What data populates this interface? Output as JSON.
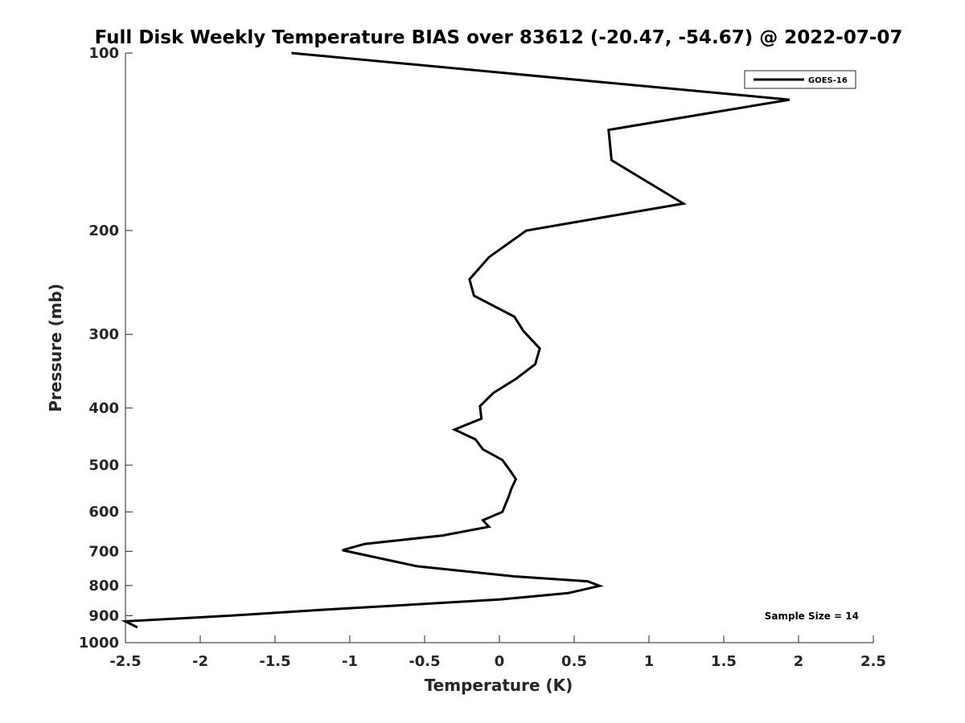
{
  "chart_data": {
    "type": "line",
    "title": "Full Disk Weekly Temperature BIAS over 83612 (-20.47, -54.67) @ 2022-07-07",
    "xlabel": "Temperature (K)",
    "ylabel": "Pressure (mb)",
    "xlim": [
      -2.5,
      2.5
    ],
    "ylim": [
      100,
      1000
    ],
    "y_scale": "log",
    "y_reversed": true,
    "x_ticks": [
      -2.5,
      -2,
      -1.5,
      -1,
      -0.5,
      0,
      0.5,
      1,
      1.5,
      2,
      2.5
    ],
    "x_tick_labels": [
      "-2.5",
      "-2",
      "-1.5",
      "-1",
      "-0.5",
      "0",
      "0.5",
      "1",
      "1.5",
      "2",
      "2.5"
    ],
    "y_ticks": [
      100,
      200,
      300,
      400,
      500,
      600,
      700,
      800,
      900,
      1000
    ],
    "y_tick_labels": [
      "100",
      "200",
      "300",
      "400",
      "500",
      "600",
      "700",
      "800",
      "900",
      "1000"
    ],
    "grid": false,
    "legend_position": "top-right",
    "line_color": "#000000",
    "annotation": "Sample Size = 14",
    "series": [
      {
        "name": "GOES-16",
        "x": [
          -1.39,
          1.94,
          0.73,
          0.75,
          1.23,
          0.18,
          -0.07,
          -0.2,
          -0.17,
          0.1,
          0.16,
          0.27,
          0.24,
          0.11,
          -0.04,
          -0.13,
          -0.12,
          -0.3,
          -0.16,
          -0.11,
          0.02,
          0.07,
          0.11,
          0.08,
          0.06,
          0.02,
          -0.11,
          -0.07,
          -0.38,
          -0.9,
          -1.05,
          -0.55,
          0.1,
          0.59,
          0.67,
          0.46,
          0.0,
          -1.2,
          -1.8,
          -2.5,
          -2.42
        ],
        "y": [
          100,
          120,
          135,
          152,
          180,
          200,
          222,
          242,
          258,
          280,
          296,
          317,
          337,
          357,
          377,
          397,
          417,
          435,
          452,
          470,
          490,
          510,
          528,
          548,
          567,
          600,
          620,
          636,
          658,
          680,
          697,
          742,
          772,
          787,
          801,
          824,
          845,
          880,
          900,
          920,
          942
        ]
      }
    ]
  }
}
